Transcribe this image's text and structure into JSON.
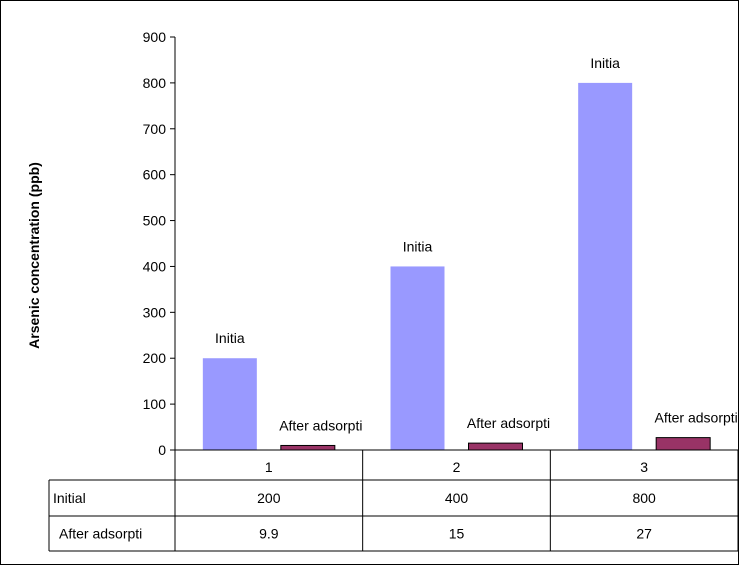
{
  "chart_data": {
    "type": "bar",
    "title": "",
    "xlabel": "",
    "ylabel": "Arsenic concentration (ppb)",
    "categories": [
      "1",
      "2",
      "3"
    ],
    "ylim": [
      0,
      900
    ],
    "yticks": [
      0,
      100,
      200,
      300,
      400,
      500,
      600,
      700,
      800,
      900
    ],
    "grid": false,
    "legend": "data table below chart",
    "series": [
      {
        "name": "Initial",
        "bar_label": "Initia",
        "table_label": "Initial",
        "color": "#9999FF",
        "values": [
          200,
          400,
          800
        ],
        "value_text": [
          "200",
          "400",
          "800"
        ]
      },
      {
        "name": "After adsorption",
        "bar_label": "After adsorpti",
        "table_label": "After adsorpti",
        "color": "#993366",
        "values": [
          9.9,
          15,
          27
        ],
        "value_text": [
          "9.9",
          "15",
          "27"
        ]
      }
    ]
  }
}
